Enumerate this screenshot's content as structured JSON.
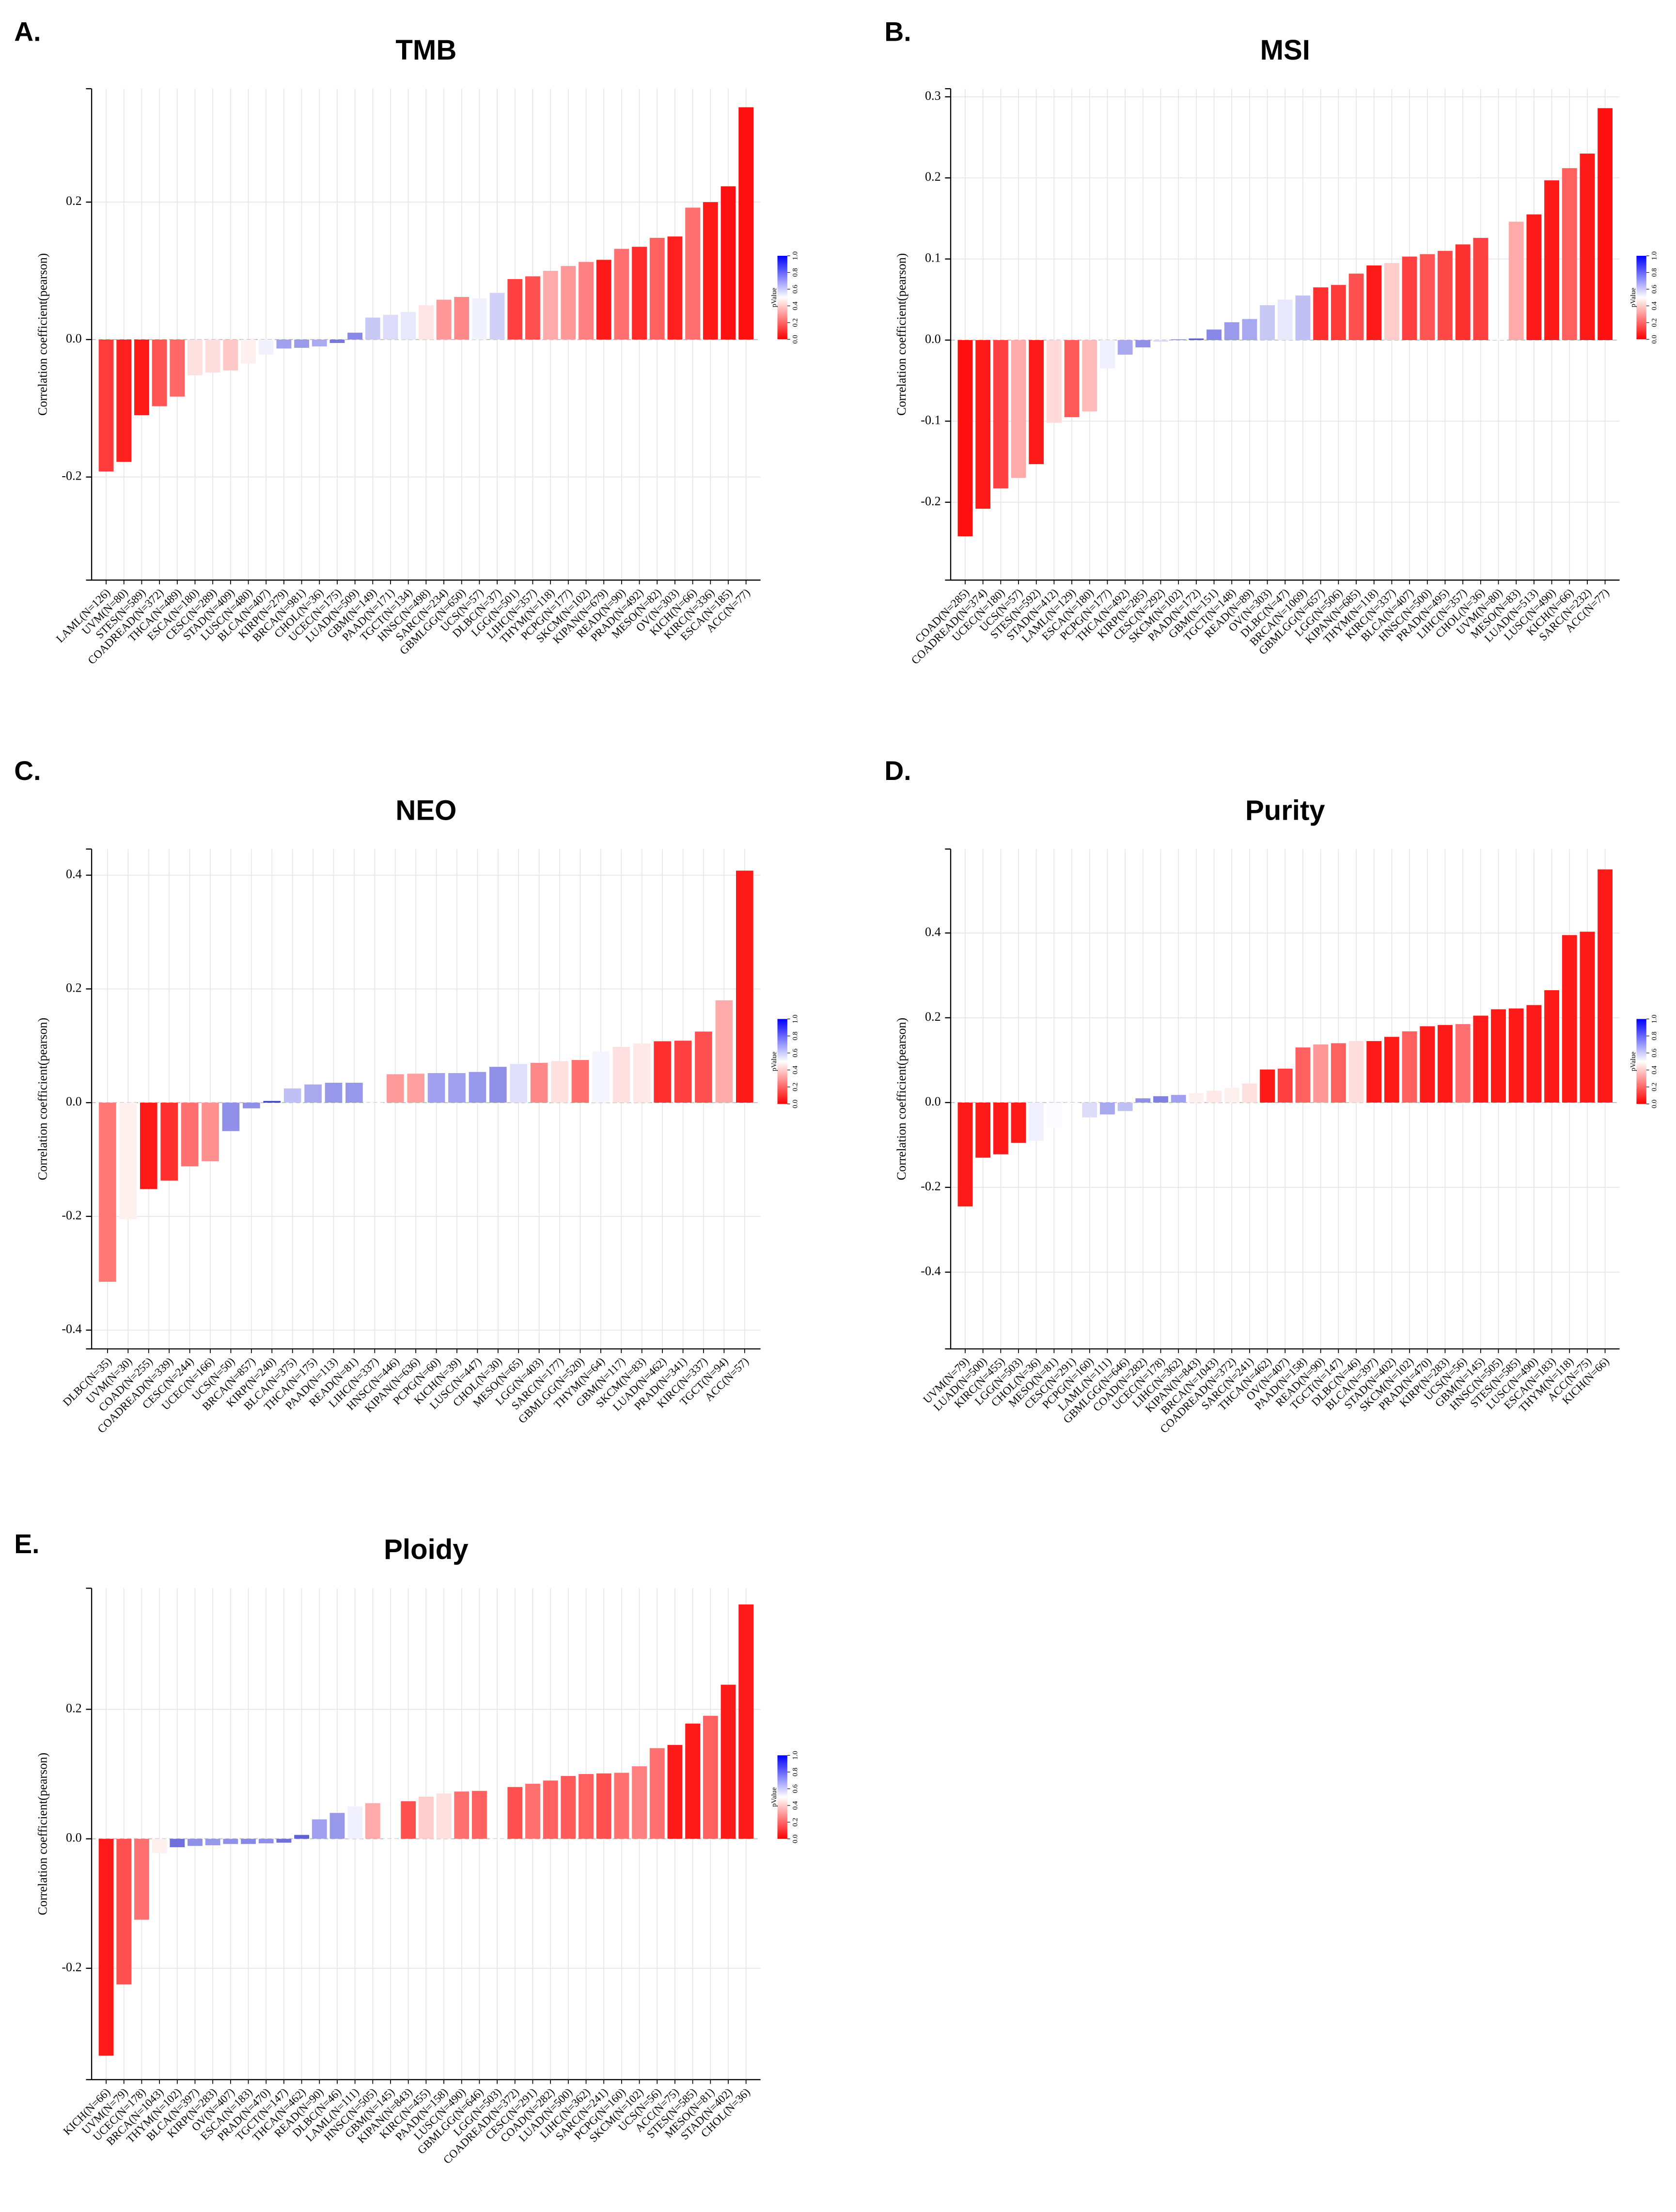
{
  "chart_data": [
    {
      "type": "bar",
      "panel_label": "A.",
      "title": "TMB",
      "y_label": "Correlation coefficient(pearson)",
      "ylim": [
        -0.35,
        0.365
      ],
      "yticks": [
        -0.2,
        {
          "value": 0,
          "label": "0.0"
        },
        0.2
      ],
      "grid": true,
      "colorbar": {
        "title": "pValue",
        "colors": [
          "#ff0000",
          "#ffffff",
          "#0000ff"
        ],
        "ticks": [
          {
            "value": 0,
            "label": "0.0"
          },
          0.2,
          0.4,
          0.6,
          0.8,
          {
            "value": 1,
            "label": "1.0"
          }
        ]
      },
      "categories": [
        "LAML(N=126)",
        "UVM(N=80)",
        "STES(N=589)",
        "COADREAD(N=372)",
        "THCA(N=489)",
        "ESCA(N=180)",
        "CESC(N=289)",
        "STAD(N=409)",
        "LUSC(N=480)",
        "BLCA(N=407)",
        "KIRP(N=279)",
        "BRCA(N=981)",
        "CHOL(N=36)",
        "UCEC(N=175)",
        "LUAD(N=509)",
        "GBM(N=149)",
        "PAAD(N=171)",
        "TGCT(N=134)",
        "HNSC(N=498)",
        "SARC(N=234)",
        "GBMLGG(N=650)",
        "UCS(N=57)",
        "DLBC(N=37)",
        "LGG(N=501)",
        "LIHC(N=357)",
        "THYM(N=118)",
        "PCPG(N=177)",
        "SKCM(N=102)",
        "KIPAN(N=679)",
        "READ(N=90)",
        "PRAD(N=492)",
        "MESO(N=82)",
        "OV(N=303)",
        "KICH(N=66)",
        "KIRC(N=336)",
        "ESCA(N=185)",
        "ACC(N=77)"
      ],
      "values": [
        -0.192,
        -0.178,
        -0.11,
        -0.097,
        -0.083,
        -0.052,
        -0.048,
        -0.045,
        -0.035,
        -0.022,
        -0.013,
        -0.012,
        -0.01,
        -0.005,
        0.01,
        0.032,
        0.036,
        0.04,
        0.05,
        0.058,
        0.062,
        0.06,
        0.068,
        0.088,
        0.092,
        0.1,
        0.107,
        0.113,
        0.116,
        0.132,
        0.135,
        0.148,
        0.15,
        0.192,
        0.2,
        0.223,
        0.338
      ],
      "colors": [
        "#ff3b3b",
        "#ff2020",
        "#ff1a1a",
        "#ff5555",
        "#ff6666",
        "#ffe0e0",
        "#ffdede",
        "#ffc8c8",
        "#fff0f0",
        "#f2f2ff",
        "#a0a0f0",
        "#9999ee",
        "#aaaaf0",
        "#7777dd",
        "#8888e8",
        "#c8c8f5",
        "#dcdcfa",
        "#e8e8fc",
        "#ffe5e5",
        "#ff9999",
        "#ff8888",
        "#f2f2ff",
        "#d0d0f8",
        "#ff4040",
        "#ff5050",
        "#ffaaaa",
        "#ff9999",
        "#ff8080",
        "#ff1a1a",
        "#ff7070",
        "#ff2a2a",
        "#ff6060",
        "#ff2020",
        "#ff7070",
        "#ff1a1a",
        "#ff1010",
        "#ff1010"
      ]
    },
    {
      "type": "bar",
      "panel_label": "B.",
      "title": "MSI",
      "y_label": "Correlation coefficient(pearson)",
      "ylim": [
        -0.296,
        0.31
      ],
      "yticks": [
        -0.2,
        -0.1,
        {
          "value": 0,
          "label": "0.0"
        },
        0.1,
        0.2,
        0.3
      ],
      "grid": true,
      "colorbar": {
        "title": "pValue",
        "colors": [
          "#ff0000",
          "#ffffff",
          "#0000ff"
        ],
        "ticks": [
          {
            "value": 0,
            "label": "0.0"
          },
          0.2,
          0.4,
          0.6,
          0.8,
          {
            "value": 1,
            "label": "1.0"
          }
        ]
      },
      "categories": [
        "COAD(N=285)",
        "COADREAD(N=374)",
        "UCEC(N=180)",
        "UCS(N=57)",
        "STES(N=592)",
        "STAD(N=412)",
        "LAML(N=129)",
        "ESCA(N=180)",
        "PCPG(N=177)",
        "THCA(N=492)",
        "KIRP(N=285)",
        "CESC(N=292)",
        "SKCM(N=102)",
        "PAAD(N=172)",
        "GBM(N=151)",
        "TGCT(N=148)",
        "READ(N=89)",
        "OV(N=303)",
        "DLBC(N=47)",
        "BRCA(N=1069)",
        "GBMLGG(N=657)",
        "LGG(N=506)",
        "KIPAN(N=685)",
        "THYM(N=118)",
        "KIRC(N=337)",
        "BLCA(N=407)",
        "HNSC(N=500)",
        "PRAD(N=495)",
        "LIHC(N=357)",
        "CHOL(N=36)",
        "UVM(N=80)",
        "MESO(N=83)",
        "LUAD(N=513)",
        "LUSC(N=490)",
        "KICH(N=66)",
        "SARC(N=232)",
        "ACC(N=77)"
      ],
      "values": [
        -0.242,
        -0.208,
        -0.183,
        -0.17,
        -0.153,
        -0.102,
        -0.095,
        -0.088,
        -0.035,
        -0.018,
        -0.009,
        -0.002,
        0.001,
        0.002,
        0.013,
        0.022,
        0.026,
        0.043,
        0.05,
        0.055,
        0.065,
        0.068,
        0.082,
        0.092,
        0.095,
        0.103,
        0.106,
        0.11,
        0.118,
        0.126,
        0.002,
        0.146,
        0.155,
        0.197,
        0.212,
        0.23,
        0.286
      ],
      "colors": [
        "#ff1010",
        "#ff1a1a",
        "#ff4040",
        "#ffaaaa",
        "#ff1a1a",
        "#ffdada",
        "#ff5a5a",
        "#ffbbbb",
        "#f0f0ff",
        "#a8a8ee",
        "#9090e8",
        "#dcdcfa",
        "#9090e8",
        "#6060d8",
        "#8888e8",
        "#9a9aec",
        "#a8a8f0",
        "#c8c8f5",
        "#e8e8fc",
        "#c0c0f4",
        "#ff3030",
        "#ff3a3a",
        "#ff5050",
        "#ff1a1a",
        "#ffcccc",
        "#ff4040",
        "#ff5555",
        "#ff4848",
        "#ff3030",
        "#ff4040",
        "#fafaff",
        "#ffaaaa",
        "#ff1a1a",
        "#ff1a1a",
        "#ff6060",
        "#ff1a1a",
        "#ff1010"
      ]
    },
    {
      "type": "bar",
      "panel_label": "C.",
      "title": "NEO",
      "y_label": "Correlation coefficient(pearson)",
      "ylim": [
        -0.433,
        0.446
      ],
      "yticks": [
        -0.4,
        -0.2,
        {
          "value": 0,
          "label": "0.0"
        },
        0.2,
        0.4
      ],
      "grid": true,
      "colorbar": {
        "title": "pValue",
        "colors": [
          "#ff0000",
          "#ffffff",
          "#0000ff"
        ],
        "ticks": [
          {
            "value": 0,
            "label": "0.0"
          },
          0.2,
          0.4,
          0.6,
          0.8,
          {
            "value": 1,
            "label": "1.0"
          }
        ]
      },
      "categories": [
        "DLBC(N=35)",
        "UVM(N=30)",
        "COAD(N=255)",
        "COADREAD(N=339)",
        "CESC(N=244)",
        "UCEC(N=166)",
        "UCS(N=50)",
        "BRCA(N=857)",
        "KIRP(N=240)",
        "BLCA(N=375)",
        "THCA(N=175)",
        "PAAD(N=113)",
        "READ(N=81)",
        "LIHC(N=337)",
        "HNSC(N=446)",
        "KIPAN(N=636)",
        "PCPG(N=60)",
        "KICH(N=39)",
        "LUSC(N=447)",
        "CHOL(N=30)",
        "MESO(N=65)",
        "LGG(N=403)",
        "SARC(N=177)",
        "GBMLGG(N=520)",
        "THYM(N=64)",
        "GBM(N=117)",
        "SKCM(N=83)",
        "LUAD(N=462)",
        "PRAD(N=341)",
        "KIRC(N=337)",
        "TGCT(N=94)",
        "ACC(N=57)"
      ],
      "values": [
        -0.315,
        -0.205,
        -0.152,
        -0.137,
        -0.112,
        -0.103,
        -0.05,
        -0.01,
        0.003,
        0.025,
        0.032,
        0.035,
        0.035,
        0.0,
        0.05,
        0.051,
        0.052,
        0.052,
        0.054,
        0.063,
        0.068,
        0.07,
        0.073,
        0.075,
        0.09,
        0.098,
        0.104,
        0.108,
        0.109,
        0.125,
        0.18,
        0.408
      ],
      "colors": [
        "#ff7777",
        "#fff0f0",
        "#ff1a1a",
        "#ff3030",
        "#ff7070",
        "#ff9090",
        "#9090e8",
        "#9090e8",
        "#4040d0",
        "#c0c0f4",
        "#a8a8ee",
        "#9898ea",
        "#9898ea",
        "#ffffff",
        "#ff9a9a",
        "#ffa0a0",
        "#a0a0ee",
        "#a0a0ee",
        "#9898ea",
        "#9090e8",
        "#e0e0fa",
        "#ff8888",
        "#ffe0e0",
        "#ff7070",
        "#f5f5ff",
        "#ffe0e0",
        "#ffe8e8",
        "#ff3030",
        "#ff4040",
        "#ff5050",
        "#ffaaaa",
        "#ff1a1a"
      ]
    },
    {
      "type": "bar",
      "panel_label": "D.",
      "title": "Purity",
      "y_label": "Correlation coefficient(pearson)",
      "ylim": [
        -0.581,
        0.598
      ],
      "yticks": [
        -0.4,
        -0.2,
        {
          "value": 0,
          "label": "0.0"
        },
        0.2,
        0.4
      ],
      "grid": true,
      "colorbar": {
        "title": "pValue",
        "colors": [
          "#ff0000",
          "#ffffff",
          "#0000ff"
        ],
        "ticks": [
          {
            "value": 0,
            "label": "0.0"
          },
          0.2,
          0.4,
          0.6,
          0.8,
          {
            "value": 1,
            "label": "1.0"
          }
        ]
      },
      "categories": [
        "UVM(N=79)",
        "LUAD(N=500)",
        "KIRC(N=455)",
        "LGG(N=503)",
        "CHOL(N=36)",
        "MESO(N=81)",
        "CESC(N=291)",
        "PCPG(N=160)",
        "LAML(N=111)",
        "GBMLGG(N=646)",
        "COAD(N=282)",
        "UCEC(N=178)",
        "LIHC(N=362)",
        "KIPAN(N=843)",
        "BRCA(N=1043)",
        "COADREAD(N=372)",
        "SARC(N=241)",
        "THCA(N=462)",
        "OV(N=407)",
        "PAAD(N=158)",
        "READ(N=90)",
        "TGCT(N=147)",
        "DLBC(N=46)",
        "BLCA(N=397)",
        "STAD(N=402)",
        "SKCM(N=102)",
        "PRAD(N=470)",
        "KIRP(N=283)",
        "UCS(N=56)",
        "GBM(N=145)",
        "HNSC(N=505)",
        "STES(N=585)",
        "LUSC(N=490)",
        "ESCA(N=183)",
        "THYM(N=118)",
        "ACC(N=75)",
        "KICH(N=66)"
      ],
      "values": [
        -0.245,
        -0.13,
        -0.122,
        -0.095,
        -0.09,
        -0.06,
        -0.003,
        -0.035,
        -0.028,
        -0.02,
        0.01,
        0.015,
        0.018,
        0.022,
        0.028,
        0.035,
        0.045,
        0.078,
        0.08,
        0.13,
        0.137,
        0.14,
        0.145,
        0.145,
        0.155,
        0.168,
        0.18,
        0.183,
        0.185,
        0.205,
        0.22,
        0.222,
        0.23,
        0.265,
        0.395,
        0.403,
        0.55
      ],
      "colors": [
        "#ff1a1a",
        "#ff1a1a",
        "#ff1a1a",
        "#ff1a1a",
        "#f0f0ff",
        "#fafaff",
        "#ffffff",
        "#ddddfa",
        "#a8a8ee",
        "#c0c0f4",
        "#9090e8",
        "#8080e0",
        "#a0a0ee",
        "#fff0f0",
        "#ffe8e8",
        "#fff0f0",
        "#ffe0e0",
        "#ff1a1a",
        "#ff4040",
        "#ff6060",
        "#ff9999",
        "#ff6060",
        "#ffdddd",
        "#ff1a1a",
        "#ff1a1a",
        "#ff6060",
        "#ff1a1a",
        "#ff1a1a",
        "#ff7070",
        "#ff1a1a",
        "#ff1a1a",
        "#ff1a1a",
        "#ff1a1a",
        "#ff1a1a",
        "#ff1a1a",
        "#ff1a1a",
        "#ff1a1a"
      ]
    },
    {
      "type": "bar",
      "panel_label": "E.",
      "title": "Ploidy",
      "y_label": "Correlation coefficient(pearson)",
      "ylim": [
        -0.372,
        0.387
      ],
      "yticks": [
        -0.2,
        {
          "value": 0,
          "label": "0.0"
        },
        0.2
      ],
      "grid": true,
      "colorbar": {
        "title": "pValue",
        "colors": [
          "#ff0000",
          "#ffffff",
          "#0000ff"
        ],
        "ticks": [
          {
            "value": 0,
            "label": "0.0"
          },
          0.2,
          0.4,
          0.6,
          0.8,
          {
            "value": 1,
            "label": "1.0"
          }
        ]
      },
      "categories": [
        "KICH(N=66)",
        "UVM(N=79)",
        "UCEC(N=178)",
        "BRCA(N=1043)",
        "THYM(N=102)",
        "BLCA(N=397)",
        "KIRP(N=283)",
        "OV(N=407)",
        "ESCA(N=183)",
        "PRAD(N=470)",
        "TGCT(N=147)",
        "THCA(N=462)",
        "READ(N=90)",
        "DLBC(N=46)",
        "LAML(N=111)",
        "HNSC(N=505)",
        "GBM(N=145)",
        "KIPAN(N=843)",
        "KIRC(N=455)",
        "PAAD(N=158)",
        "LUSC(N=490)",
        "GBMLGG(N=646)",
        "LGG(N=503)",
        "COADREAD(N=372)",
        "CESC(N=291)",
        "COAD(N=282)",
        "LUAD(N=500)",
        "LIHC(N=362)",
        "SARC(N=241)",
        "PCPG(N=160)",
        "SKCM(N=102)",
        "UCS(N=56)",
        "ACC(N=75)",
        "STES(N=585)",
        "MESO(N=81)",
        "STAD(N=402)",
        "CHOL(N=36)"
      ],
      "values": [
        -0.335,
        -0.225,
        -0.125,
        -0.022,
        -0.013,
        -0.011,
        -0.01,
        -0.008,
        -0.008,
        -0.007,
        -0.006,
        0.006,
        0.03,
        0.04,
        0.05,
        0.055,
        0.0,
        0.058,
        0.065,
        0.07,
        0.073,
        0.074,
        0.0,
        0.08,
        0.085,
        0.09,
        0.097,
        0.1,
        0.101,
        0.102,
        0.112,
        0.14,
        0.145,
        0.178,
        0.19,
        0.238,
        0.362
      ],
      "colors": [
        "#ff1a1a",
        "#ff5050",
        "#ff7070",
        "#fff0f0",
        "#7070dd",
        "#9090e8",
        "#9898ea",
        "#9090e8",
        "#8888e8",
        "#9090e8",
        "#7070dd",
        "#6060d8",
        "#a0a0ee",
        "#9898ea",
        "#f0f0ff",
        "#ffaaaa",
        "#ffffff",
        "#ff5050",
        "#ffcccc",
        "#ffe0e0",
        "#ff7070",
        "#ff6060",
        "#ffffff",
        "#ff5050",
        "#ff7070",
        "#ff6060",
        "#ff5a5a",
        "#ff6060",
        "#ff5050",
        "#ff7070",
        "#ff8080",
        "#ff7070",
        "#ff1a1a",
        "#ff1a1a",
        "#ff6060",
        "#ff1a1a",
        "#ff1a1a"
      ]
    }
  ]
}
